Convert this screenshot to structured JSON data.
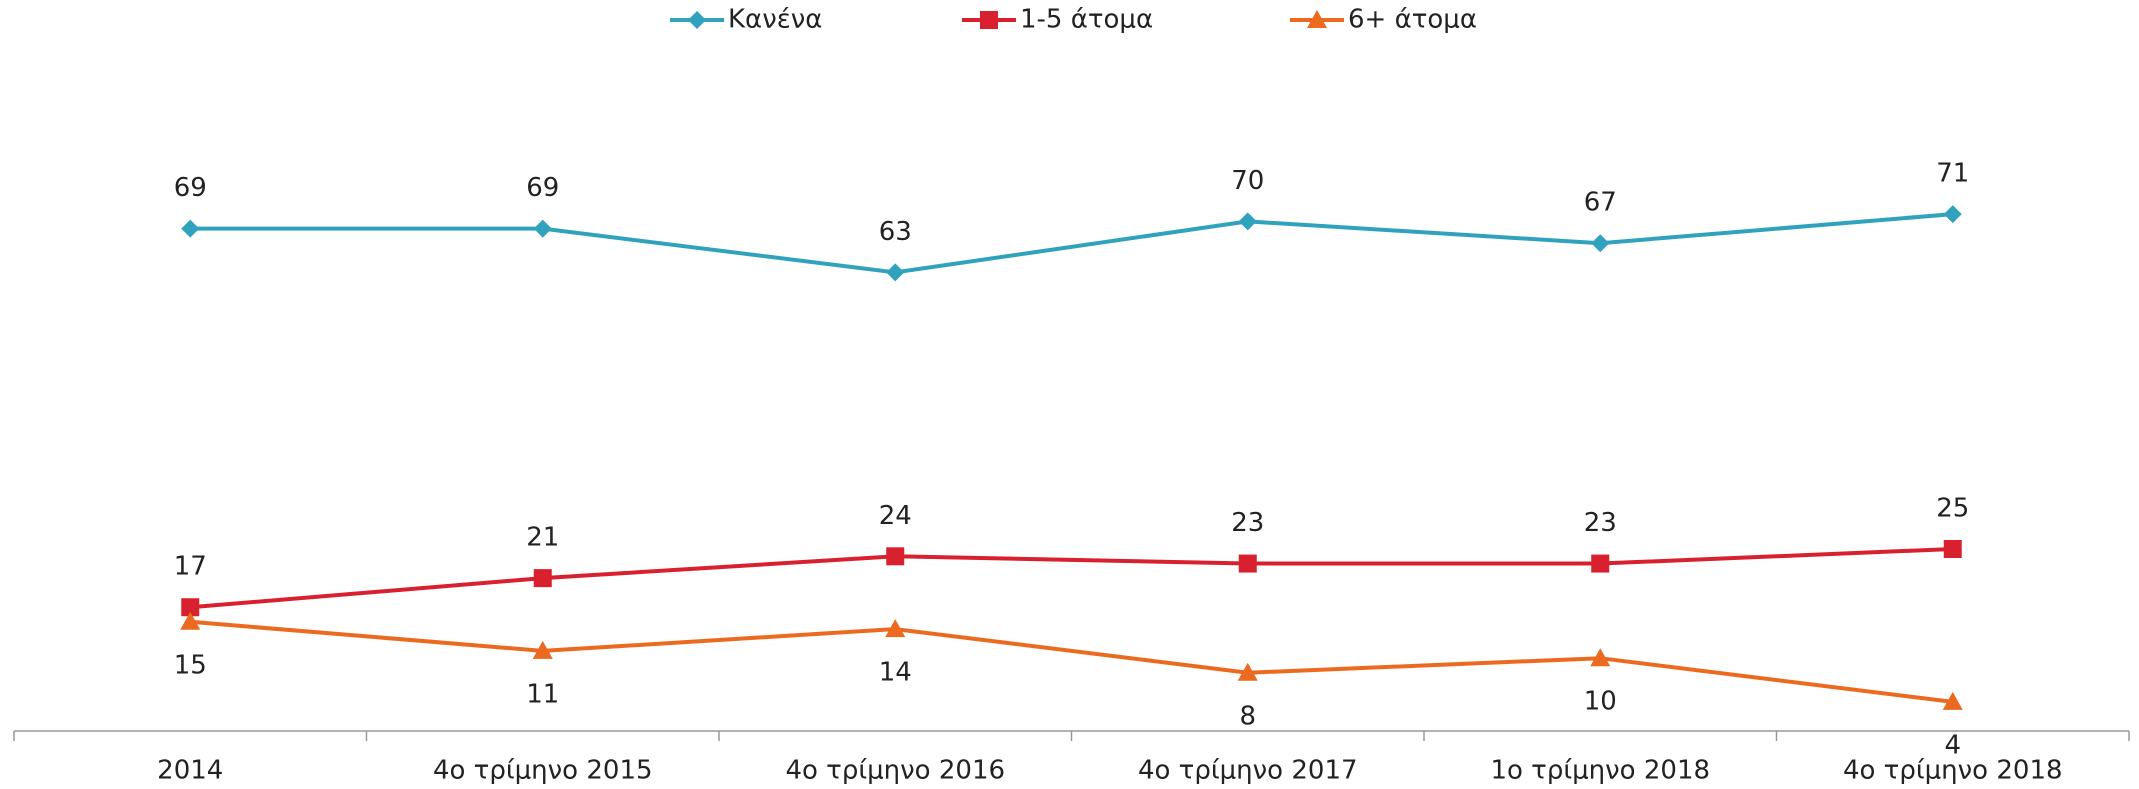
{
  "chart_data": {
    "type": "line",
    "categories": [
      "2014",
      "4ο τρίμηνο 2015",
      "4ο τρίμηνο 2016",
      "4ο τρίμηνο 2017",
      "1ο τρίμηνο 2018",
      "4ο τρίμηνο 2018"
    ],
    "series": [
      {
        "name": "Κανένα",
        "color": "#31a2bd",
        "marker": "diamond",
        "values": [
          69,
          69,
          63,
          70,
          67,
          71
        ]
      },
      {
        "name": "1-5 άτομα",
        "color": "#d9202f",
        "marker": "square",
        "values": [
          17,
          21,
          24,
          23,
          23,
          25
        ]
      },
      {
        "name": "6+ άτομα",
        "color": "#ec6a1f",
        "marker": "triangle",
        "values": [
          15,
          11,
          14,
          8,
          10,
          4
        ]
      }
    ],
    "ylim": [
      0,
      100
    ],
    "legend": "top"
  }
}
